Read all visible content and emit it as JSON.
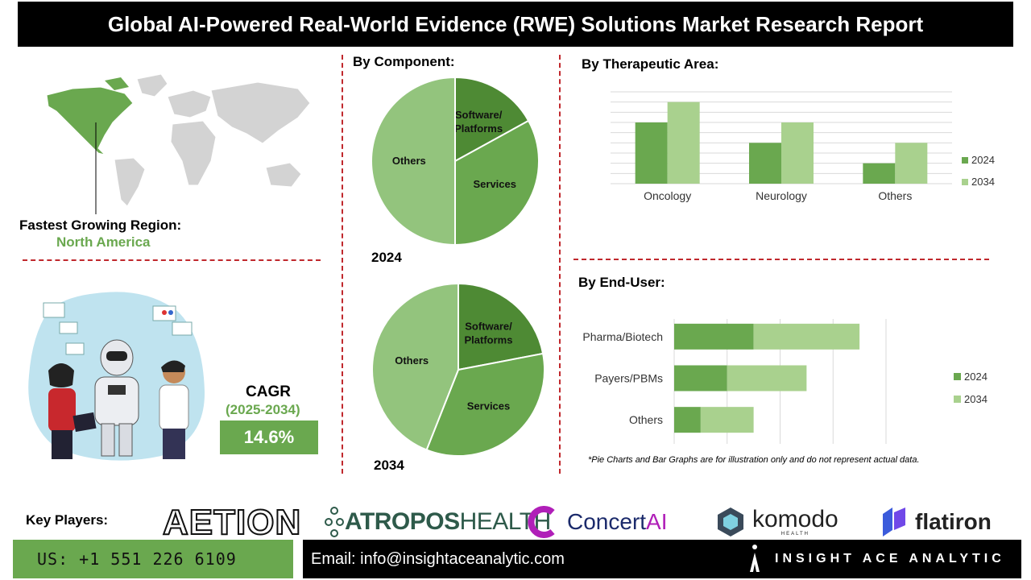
{
  "title": "Global AI-Powered Real-World Evidence (RWE) Solutions Market Research Report",
  "region": {
    "label": "Fastest Growing Region:",
    "value": "North America"
  },
  "cagr": {
    "label": "CAGR",
    "period": "(2025-2034)",
    "value": "14.6%"
  },
  "component": {
    "heading": "By Component:",
    "pies": [
      {
        "year": "2024",
        "slices": [
          {
            "label": "Software/ Platforms",
            "value": 17,
            "color": "#4e8a34"
          },
          {
            "label": "Services",
            "value": 33,
            "color": "#6aa84f"
          },
          {
            "label": "Others",
            "value": 50,
            "color": "#93c47d"
          }
        ]
      },
      {
        "year": "2034",
        "slices": [
          {
            "label": "Software/ Platforms",
            "value": 22,
            "color": "#4e8a34"
          },
          {
            "label": "Services",
            "value": 34,
            "color": "#6aa84f"
          },
          {
            "label": "Others",
            "value": 44,
            "color": "#93c47d"
          }
        ]
      }
    ]
  },
  "therapeutic": {
    "heading": "By Therapeutic Area:",
    "chart_data": {
      "type": "bar",
      "categories": [
        "Oncology",
        "Neurology",
        "Others"
      ],
      "series": [
        {
          "name": "2024",
          "values": [
            3,
            2,
            1
          ],
          "color": "#6aa84f"
        },
        {
          "name": "2034",
          "values": [
            4,
            3,
            2
          ],
          "color": "#a9d18e"
        }
      ],
      "ylim": [
        0,
        4.5
      ],
      "grid": true,
      "legend": "right"
    }
  },
  "enduser": {
    "heading": "By End-User:",
    "chart_data": {
      "type": "bar",
      "orientation": "horizontal",
      "categories": [
        "Pharma/Biotech",
        "Payers/PBMs",
        "Others"
      ],
      "series": [
        {
          "name": "2024",
          "values": [
            1.5,
            1.0,
            0.5
          ],
          "color": "#6aa84f"
        },
        {
          "name": "2034",
          "values": [
            2.0,
            1.5,
            1.0
          ],
          "color": "#a9d18e"
        }
      ],
      "xlim": [
        0,
        4.0
      ],
      "stacked": true,
      "grid": true,
      "legend": "right"
    }
  },
  "disclaimer": "*Pie Charts and Bar Graphs are for illustration only and do not represent actual data.",
  "players": {
    "label": "Key Players:",
    "logos": [
      {
        "name": "AETION"
      },
      {
        "name1": "ATROPOS",
        "name2": "HEALTH"
      },
      {
        "name1": "Concert",
        "name2": "AI"
      },
      {
        "name": "komodo",
        "sub": "HEALTH"
      },
      {
        "name": "flatiron"
      }
    ]
  },
  "footer": {
    "phone": "US: +1 551 226 6109",
    "email": "Email: info@insightaceanalytic.com",
    "brand": "INSIGHT ACE ANALYTIC"
  },
  "colors": {
    "dark_green": "#4e8a34",
    "green": "#6aa84f",
    "light_green": "#93c47d",
    "pale_green": "#a9d18e",
    "divider_red": "#c0282d"
  }
}
